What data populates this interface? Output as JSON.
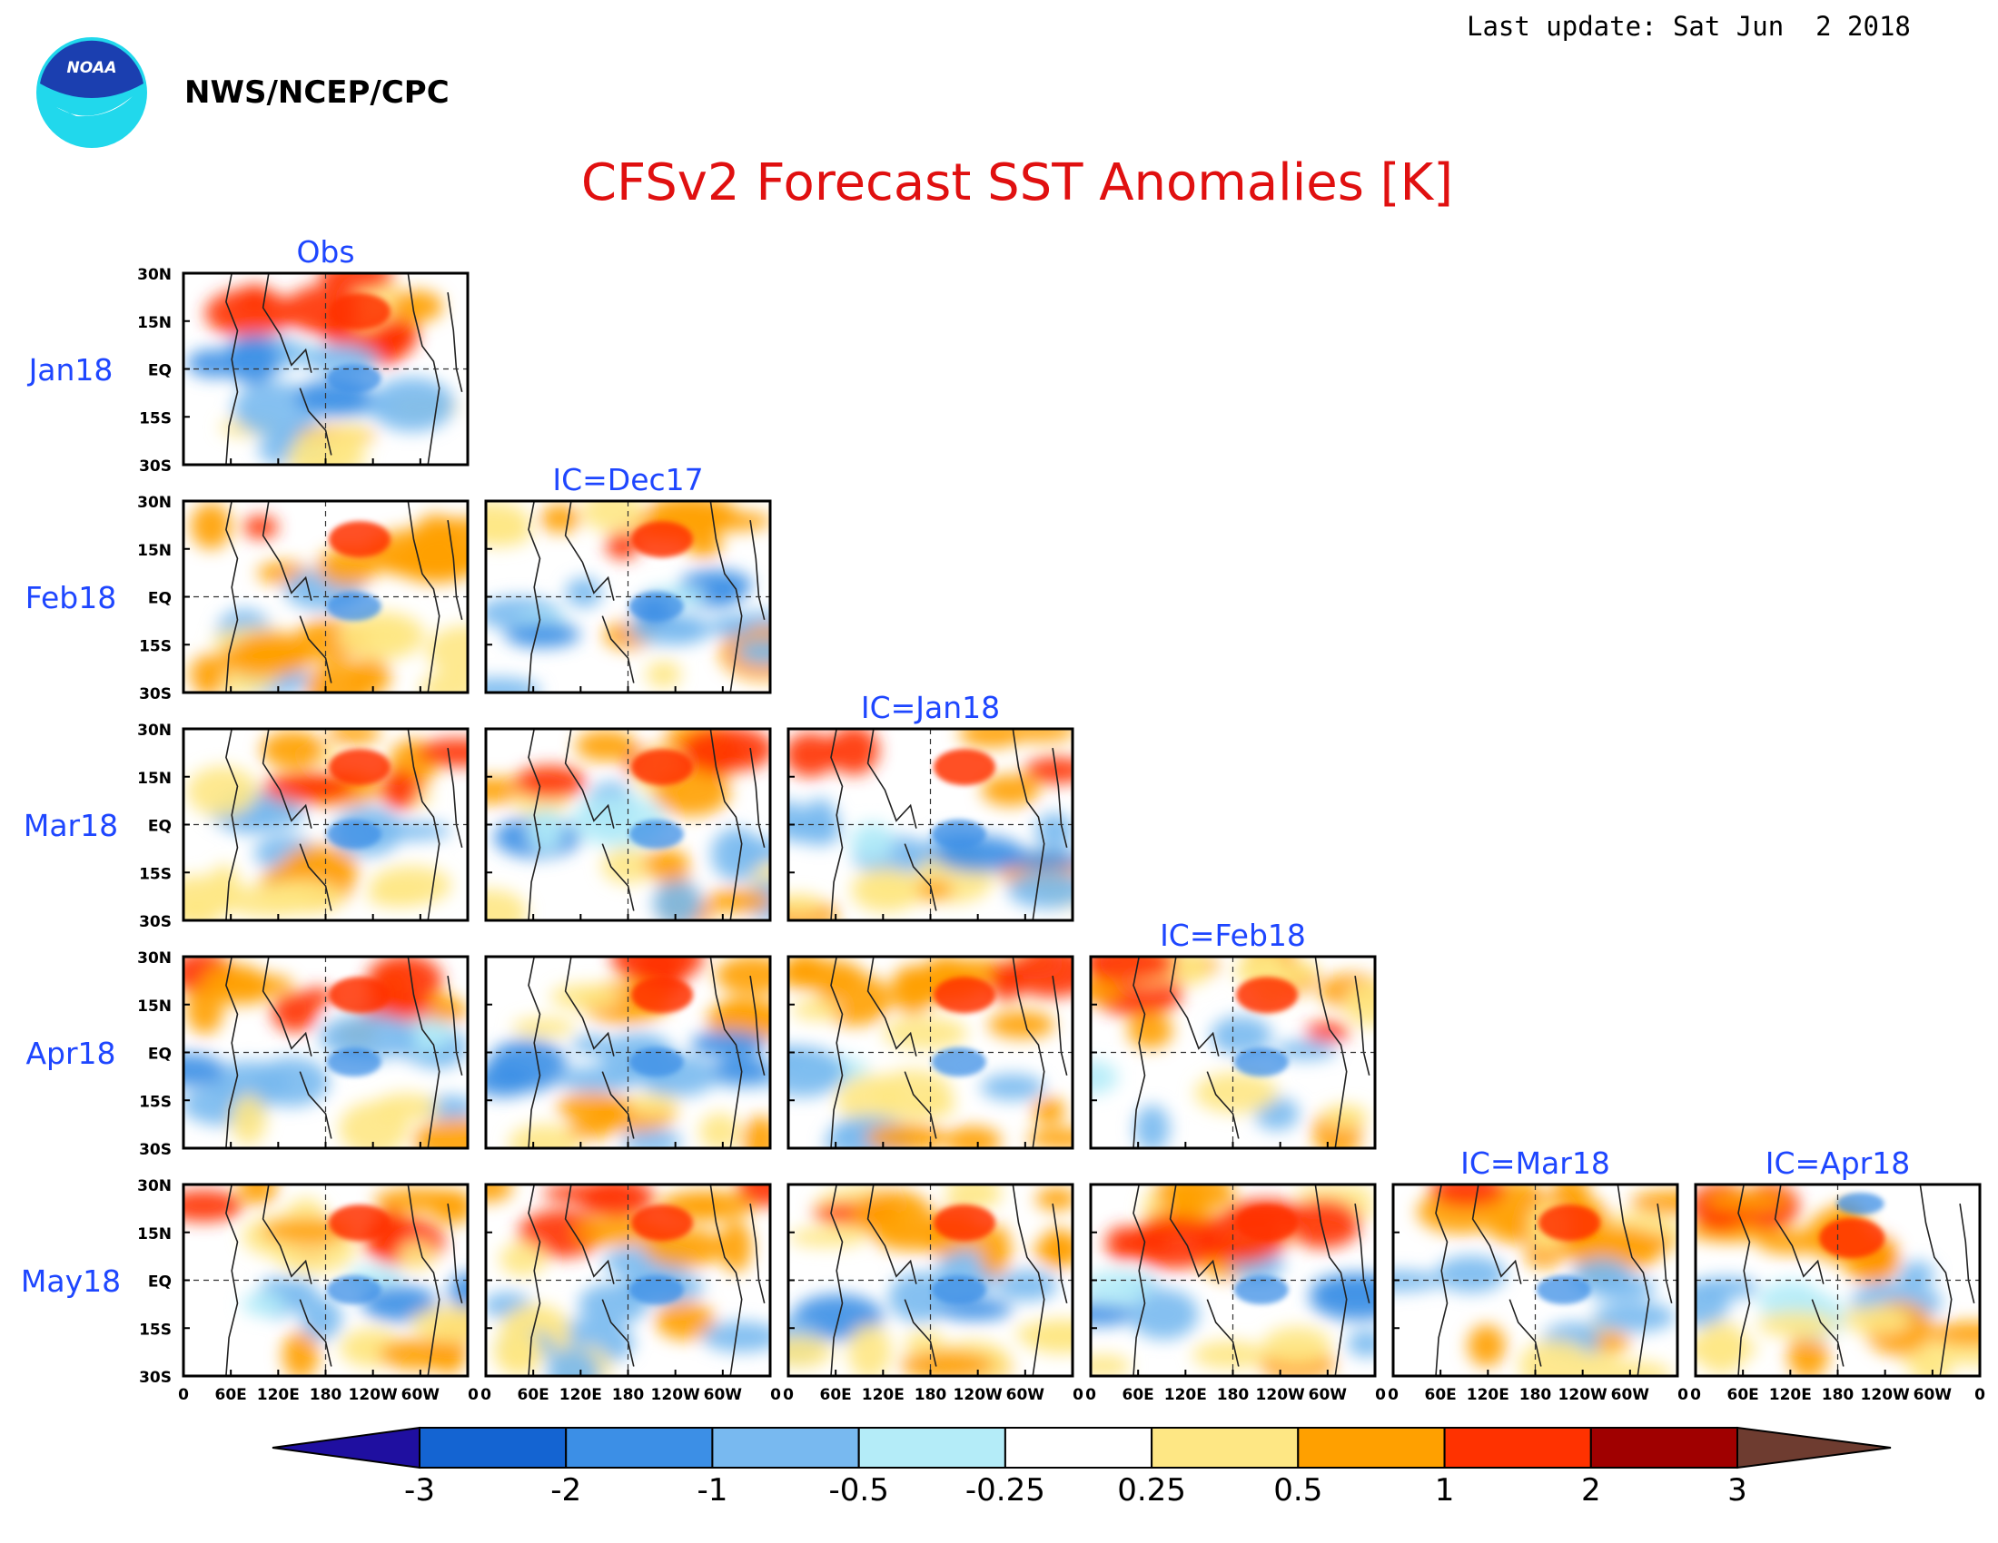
{
  "header": {
    "org": "NWS/NCEP/CPC",
    "logo_text": "NOAA",
    "last_update": "Last update: Sat Jun  2 2018",
    "title": "CFSv2 Forecast SST Anomalies [K]"
  },
  "columns": [
    "Obs",
    "IC=Dec17",
    "IC=Jan18",
    "IC=Feb18",
    "IC=Mar18",
    "IC=Apr18"
  ],
  "rows": [
    "Jan18",
    "Feb18",
    "Mar18",
    "Apr18",
    "May18"
  ],
  "lat_ticks": [
    "30N",
    "15N",
    "EQ",
    "15S",
    "30S"
  ],
  "lon_ticks": [
    "0",
    "60E",
    "120E",
    "180",
    "120W",
    "60W",
    "0"
  ],
  "colorbar": {
    "labels": [
      "-3",
      "-2",
      "-1",
      "-0.5",
      "-0.25",
      "0.25",
      "0.5",
      "1",
      "2",
      "3"
    ],
    "colors": [
      "#1f0fa0",
      "#1464d2",
      "#3c8fe6",
      "#78b9f0",
      "#b4ecf8",
      "#ffffff",
      "#fee784",
      "#ffa000",
      "#ff3200",
      "#a00000",
      "#6e3c30"
    ]
  },
  "colors": {
    "title": "#e01010",
    "panel_labels": "#1e46ff",
    "logo": "#1b3fb0",
    "logo_ring": "#21d8ec"
  }
}
